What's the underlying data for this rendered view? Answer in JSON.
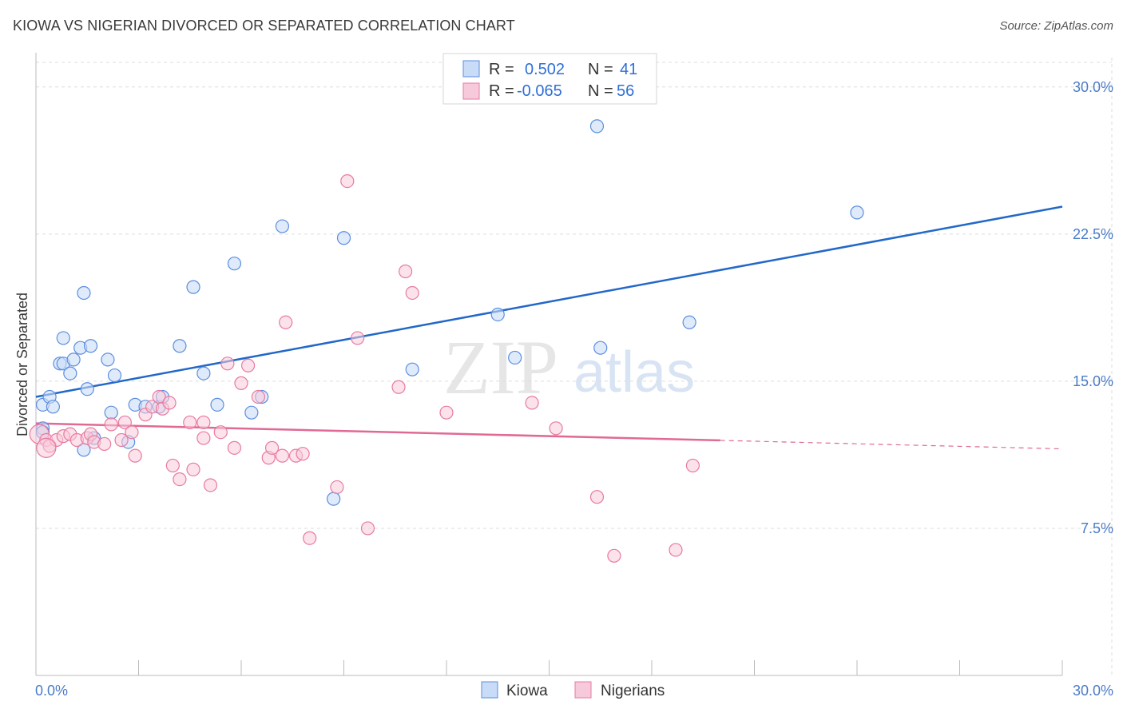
{
  "header": {
    "title": "KIOWA VS NIGERIAN DIVORCED OR SEPARATED CORRELATION CHART",
    "source": "Source: ZipAtlas.com"
  },
  "watermark": {
    "zip": "ZIP",
    "atlas": "atlas"
  },
  "legend": {
    "r_label": "R =",
    "n_label": "N =",
    "rows": [
      {
        "r": "0.502",
        "n": "41"
      },
      {
        "r": "-0.065",
        "n": "56"
      }
    ]
  },
  "colors": {
    "kiowa": "#5b8ee0",
    "kiowa_fill": "#c9dcf7",
    "kiowa_line": "#2268c8",
    "nigerians": "#e87aa0",
    "nigerians_fill": "#f7cadb",
    "nigerians_line": "#e06a95",
    "tick": "#4a7cc7",
    "grid": "#dddddd"
  },
  "chart_data": {
    "type": "scatter",
    "title": "KIOWA VS NIGERIAN DIVORCED OR SEPARATED CORRELATION CHART",
    "xlabel": "",
    "ylabel": "Divorced or Separated",
    "xlim": [
      0,
      30
    ],
    "ylim": [
      0,
      31.5
    ],
    "x_tick_labels": [
      "0.0%",
      "30.0%"
    ],
    "y_ticks": [
      7.5,
      15.0,
      22.5,
      30.0
    ],
    "y_tick_labels": [
      "7.5%",
      "15.0%",
      "22.5%",
      "30.0%"
    ],
    "grid": true,
    "legend_position": "top-center",
    "series": [
      {
        "name": "Kiowa",
        "r": 0.502,
        "n": 41,
        "trend": {
          "x": [
            0,
            30
          ],
          "y": [
            14.2,
            23.9
          ],
          "dashed_from": null
        },
        "points": [
          [
            0.2,
            12.6
          ],
          [
            0.2,
            13.8
          ],
          [
            0.4,
            14.2
          ],
          [
            0.5,
            13.7
          ],
          [
            0.7,
            15.9
          ],
          [
            0.8,
            15.9
          ],
          [
            0.8,
            17.2
          ],
          [
            1.0,
            15.4
          ],
          [
            1.1,
            16.1
          ],
          [
            1.3,
            16.7
          ],
          [
            1.4,
            19.5
          ],
          [
            1.5,
            14.6
          ],
          [
            1.6,
            16.8
          ],
          [
            1.7,
            12.1
          ],
          [
            1.4,
            11.5
          ],
          [
            2.1,
            16.1
          ],
          [
            2.2,
            13.4
          ],
          [
            2.3,
            15.3
          ],
          [
            2.7,
            11.9
          ],
          [
            2.9,
            13.8
          ],
          [
            3.2,
            13.7
          ],
          [
            3.6,
            13.7
          ],
          [
            3.7,
            14.2
          ],
          [
            4.2,
            16.8
          ],
          [
            4.6,
            19.8
          ],
          [
            4.9,
            15.4
          ],
          [
            5.3,
            13.8
          ],
          [
            5.8,
            21.0
          ],
          [
            6.3,
            13.4
          ],
          [
            6.6,
            14.2
          ],
          [
            7.2,
            22.9
          ],
          [
            8.7,
            9.0
          ],
          [
            9.0,
            22.3
          ],
          [
            11.0,
            15.6
          ],
          [
            13.5,
            18.4
          ],
          [
            14.0,
            16.2
          ],
          [
            16.4,
            28.0
          ],
          [
            16.5,
            16.7
          ],
          [
            19.1,
            18.0
          ],
          [
            24.0,
            23.6
          ],
          [
            0.2,
            12.4
          ]
        ]
      },
      {
        "name": "Nigerians",
        "r": -0.065,
        "n": 56,
        "trend": {
          "x": [
            0,
            30
          ],
          "y": [
            12.85,
            11.55
          ],
          "dashed_from": 20.0
        },
        "points": [
          [
            0.1,
            12.3
          ],
          [
            0.3,
            12.0
          ],
          [
            0.4,
            11.7
          ],
          [
            0.6,
            12.0
          ],
          [
            0.8,
            12.2
          ],
          [
            1.0,
            12.3
          ],
          [
            1.2,
            12.0
          ],
          [
            1.5,
            12.1
          ],
          [
            1.6,
            12.3
          ],
          [
            1.7,
            11.9
          ],
          [
            2.0,
            11.8
          ],
          [
            2.2,
            12.8
          ],
          [
            2.5,
            12.0
          ],
          [
            2.6,
            12.9
          ],
          [
            2.8,
            12.4
          ],
          [
            2.9,
            11.2
          ],
          [
            3.2,
            13.3
          ],
          [
            3.4,
            13.7
          ],
          [
            3.6,
            14.2
          ],
          [
            3.7,
            13.6
          ],
          [
            3.9,
            13.9
          ],
          [
            4.0,
            10.7
          ],
          [
            4.2,
            10.0
          ],
          [
            4.5,
            12.9
          ],
          [
            4.6,
            10.5
          ],
          [
            4.9,
            12.1
          ],
          [
            4.9,
            12.9
          ],
          [
            5.1,
            9.7
          ],
          [
            5.4,
            12.4
          ],
          [
            5.6,
            15.9
          ],
          [
            5.8,
            11.6
          ],
          [
            6.0,
            14.9
          ],
          [
            6.2,
            15.8
          ],
          [
            6.5,
            14.2
          ],
          [
            6.8,
            11.1
          ],
          [
            6.9,
            11.6
          ],
          [
            7.2,
            11.2
          ],
          [
            7.3,
            18.0
          ],
          [
            7.6,
            11.2
          ],
          [
            7.8,
            11.3
          ],
          [
            8.0,
            7.0
          ],
          [
            8.8,
            9.6
          ],
          [
            9.1,
            25.2
          ],
          [
            9.4,
            17.2
          ],
          [
            9.7,
            7.5
          ],
          [
            10.6,
            14.7
          ],
          [
            10.8,
            20.6
          ],
          [
            11.0,
            19.5
          ],
          [
            12.0,
            13.4
          ],
          [
            14.5,
            13.9
          ],
          [
            15.2,
            12.6
          ],
          [
            16.4,
            9.1
          ],
          [
            16.9,
            6.1
          ],
          [
            18.7,
            6.4
          ],
          [
            19.2,
            10.7
          ],
          [
            0.3,
            11.6
          ]
        ]
      }
    ]
  },
  "bottom_legend": {
    "items": [
      "Kiowa",
      "Nigerians"
    ]
  }
}
